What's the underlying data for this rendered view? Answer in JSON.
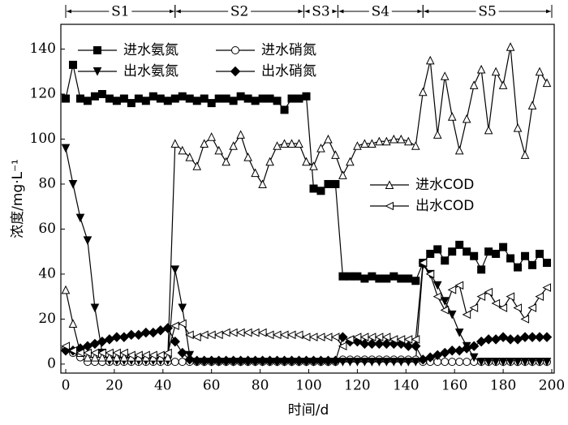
{
  "chart_data": {
    "type": "line",
    "xlabel": "时间/d",
    "ylabel": "浓度/mg·L⁻¹",
    "xlim": [
      -2,
      201
    ],
    "ylim": [
      -4,
      151
    ],
    "xticks": [
      0,
      20,
      40,
      60,
      80,
      100,
      120,
      140,
      160,
      180,
      200
    ],
    "yticks": [
      0,
      20,
      40,
      60,
      80,
      100,
      120,
      140
    ],
    "phases": [
      {
        "label": "S1",
        "start": 0,
        "end": 45
      },
      {
        "label": "S2",
        "start": 45,
        "end": 98
      },
      {
        "label": "S3",
        "start": 98,
        "end": 112
      },
      {
        "label": "S4",
        "start": 112,
        "end": 147
      },
      {
        "label": "S5",
        "start": 147,
        "end": 200
      }
    ],
    "x": [
      0,
      3,
      6,
      9,
      12,
      15,
      18,
      21,
      24,
      27,
      30,
      33,
      36,
      39,
      42,
      45,
      48,
      51,
      54,
      57,
      60,
      63,
      66,
      69,
      72,
      75,
      78,
      81,
      84,
      87,
      90,
      93,
      96,
      99,
      102,
      105,
      108,
      111,
      114,
      117,
      120,
      123,
      126,
      129,
      132,
      135,
      138,
      141,
      144,
      147,
      150,
      153,
      156,
      159,
      162,
      165,
      168,
      171,
      174,
      177,
      180,
      183,
      186,
      189,
      192,
      195,
      198
    ],
    "series": [
      {
        "name": "进水氨氮",
        "color": "#000000",
        "marker": "filled-square",
        "values": [
          118,
          133,
          118,
          117,
          119,
          120,
          118,
          117,
          118,
          116,
          118,
          117,
          119,
          118,
          117,
          118,
          119,
          118,
          117,
          118,
          116,
          118,
          118,
          117,
          119,
          118,
          117,
          118,
          118,
          117,
          113,
          118,
          118,
          119,
          78,
          77,
          80,
          80,
          39,
          39,
          39,
          38,
          39,
          38,
          38,
          39,
          38,
          38,
          37,
          45,
          49,
          51,
          46,
          50,
          53,
          50,
          48,
          42,
          50,
          49,
          52,
          47,
          43,
          48,
          44,
          49,
          45
        ]
      },
      {
        "name": "进水硝氮",
        "color": "#000000",
        "marker": "open-circle",
        "values": [
          7,
          5,
          3,
          1,
          1,
          1,
          1,
          1,
          1,
          1,
          1,
          1,
          1,
          1,
          1,
          1,
          1,
          1,
          1,
          1,
          1,
          1,
          1,
          1,
          1,
          1,
          1,
          1,
          1,
          1,
          1,
          1,
          1,
          1,
          1,
          1,
          1,
          1,
          2,
          2,
          2,
          2,
          2,
          2,
          2,
          2,
          2,
          2,
          2,
          1,
          1,
          1,
          1,
          1,
          1,
          1,
          1,
          1,
          1,
          1,
          1,
          1,
          1,
          1,
          1,
          1,
          1
        ]
      },
      {
        "name": "出水氨氮",
        "color": "#000000",
        "marker": "filled-tri-down",
        "values": [
          96,
          80,
          65,
          55,
          25,
          5,
          1.5,
          1.5,
          1.5,
          1.5,
          1.5,
          1.5,
          1.5,
          1.5,
          1.5,
          42,
          25,
          4,
          1,
          1,
          1,
          1,
          1,
          1,
          1,
          1,
          1,
          1,
          1,
          1,
          1,
          1,
          1,
          1,
          1,
          1,
          1,
          1,
          1,
          1,
          1,
          1,
          1,
          1,
          1,
          1,
          1,
          1,
          1,
          44,
          40,
          35,
          28,
          22,
          14,
          8,
          3,
          1,
          1,
          1,
          1,
          1,
          1,
          1,
          1,
          1,
          1
        ]
      },
      {
        "name": "出水硝氮",
        "color": "#000000",
        "marker": "filled-diamond",
        "values": [
          6,
          6,
          7,
          8,
          9,
          10,
          11,
          12,
          12,
          13,
          13,
          14,
          14,
          15,
          16,
          10,
          5,
          2,
          1.5,
          1.5,
          1.5,
          1.5,
          1.5,
          1.5,
          1.5,
          1.5,
          1.5,
          1.5,
          1.5,
          1.5,
          1.5,
          1.5,
          1.5,
          1.5,
          1.5,
          1.5,
          1.5,
          1.5,
          12,
          10,
          10,
          9,
          9,
          9,
          9,
          9,
          9,
          8,
          8,
          2,
          3,
          4,
          5,
          6,
          6,
          7,
          8,
          10,
          11,
          11,
          12,
          11,
          11,
          12,
          12,
          12,
          12
        ]
      },
      {
        "name": "进水COD",
        "color": "#000000",
        "marker": "open-tri-up",
        "values": [
          33,
          18,
          5,
          3,
          3,
          3,
          3,
          3,
          3,
          3,
          3,
          3,
          3,
          3,
          3,
          98,
          95,
          92,
          88,
          98,
          101,
          95,
          90,
          97,
          102,
          92,
          85,
          80,
          90,
          97,
          98,
          98,
          98,
          90,
          88,
          96,
          100,
          93,
          84,
          90,
          97,
          98,
          98,
          99,
          99,
          100,
          100,
          99,
          97,
          121,
          135,
          102,
          128,
          110,
          95,
          109,
          124,
          131,
          104,
          130,
          124,
          141,
          105,
          93,
          115,
          130,
          125
        ]
      },
      {
        "name": "出水COD",
        "color": "#000000",
        "marker": "open-tri-left",
        "values": [
          8,
          6,
          5,
          5,
          5,
          5,
          5,
          5,
          5,
          4,
          4,
          4,
          4,
          4,
          5,
          17,
          18,
          13,
          12,
          13,
          13,
          13,
          14,
          14,
          14,
          14,
          14,
          14,
          13,
          13,
          13,
          13,
          13,
          12,
          12,
          12,
          12,
          12,
          8,
          11,
          12,
          12,
          12,
          12,
          12,
          11,
          11,
          11,
          11,
          45,
          40,
          30,
          24,
          33,
          35,
          22,
          25,
          30,
          32,
          27,
          25,
          30,
          25,
          20,
          25,
          30,
          34
        ]
      }
    ]
  }
}
